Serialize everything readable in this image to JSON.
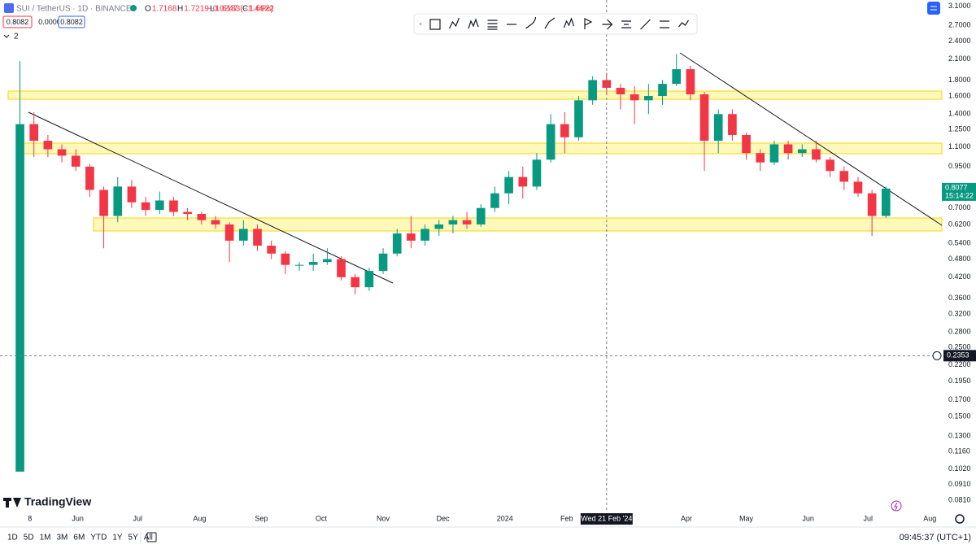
{
  "header": {
    "symbol": "SUI / TetherUS · 1D · BINANCE",
    "ohlc": [
      {
        "label": "O",
        "value": "1.7168"
      },
      {
        "label": "H",
        "value": "1.7219"
      },
      {
        "label": "L",
        "value": "1.6183"
      },
      {
        "label": "C",
        "value": "1.6922"
      }
    ],
    "change": "−0.0247 (−1.44%)",
    "boxes": [
      "0.8082",
      "0.0000",
      "0.8082"
    ],
    "indicators": "2"
  },
  "chart_data": {
    "type": "candlestick",
    "log_scale": true,
    "grid": false,
    "up_color": "#089981",
    "down_color": "#f23645",
    "xlim": [
      "2023-04-23",
      "2024-08-07"
    ],
    "xticks": [
      {
        "value": "2023-05-08",
        "label": "8"
      },
      {
        "value": "2023-06-01",
        "label": "Jun"
      },
      {
        "value": "2023-07-01",
        "label": "Jul"
      },
      {
        "value": "2023-08-01",
        "label": "Aug"
      },
      {
        "value": "2023-09-01",
        "label": "Sep"
      },
      {
        "value": "2023-10-01",
        "label": "Oct"
      },
      {
        "value": "2023-11-01",
        "label": "Nov"
      },
      {
        "value": "2023-12-01",
        "label": "Dec"
      },
      {
        "value": "2024-01-01",
        "label": "2024"
      },
      {
        "value": "2024-02-01",
        "label": "Feb"
      },
      {
        "value": "2024-04-01",
        "label": "Apr"
      },
      {
        "value": "2024-05-01",
        "label": "May"
      },
      {
        "value": "2024-06-01",
        "label": "Jun"
      },
      {
        "value": "2024-07-01",
        "label": "Jul"
      },
      {
        "value": "2024-08-01",
        "label": "Aug"
      }
    ],
    "ylim": [
      0.074,
      3.25
    ],
    "yticks": [
      {
        "value": 3.1,
        "label": "3.1000"
      },
      {
        "value": 2.7,
        "label": "2.7000"
      },
      {
        "value": 2.4,
        "label": "2.4000"
      },
      {
        "value": 2.1,
        "label": "2.1000"
      },
      {
        "value": 1.8,
        "label": "1.8000"
      },
      {
        "value": 1.6,
        "label": "1.6000"
      },
      {
        "value": 1.4,
        "label": "1.4000"
      },
      {
        "value": 1.25,
        "label": "1.2500"
      },
      {
        "value": 1.1,
        "label": "1.1000"
      },
      {
        "value": 0.95,
        "label": "0.9500"
      },
      {
        "value": 0.7,
        "label": "0.7000"
      },
      {
        "value": 0.62,
        "label": "0.6200"
      },
      {
        "value": 0.54,
        "label": "0.5400"
      },
      {
        "value": 0.48,
        "label": "0.4800"
      },
      {
        "value": 0.42,
        "label": "0.4200"
      },
      {
        "value": 0.36,
        "label": "0.3600"
      },
      {
        "value": 0.32,
        "label": "0.3200"
      },
      {
        "value": 0.28,
        "label": "0.2800"
      },
      {
        "value": 0.25,
        "label": "0.2500"
      },
      {
        "value": 0.22,
        "label": "0.2200"
      },
      {
        "value": 0.195,
        "label": "0.1950"
      },
      {
        "value": 0.17,
        "label": "0.1700"
      },
      {
        "value": 0.15,
        "label": "0.1500"
      },
      {
        "value": 0.13,
        "label": "0.1300"
      },
      {
        "value": 0.116,
        "label": "0.1160"
      },
      {
        "value": 0.102,
        "label": "0.1020"
      },
      {
        "value": 0.091,
        "label": "0.0910"
      },
      {
        "value": 0.081,
        "label": "0.0810"
      }
    ],
    "x": [
      "2023-05-03",
      "2023-05-10",
      "2023-05-17",
      "2023-05-24",
      "2023-05-31",
      "2023-06-07",
      "2023-06-14",
      "2023-06-21",
      "2023-06-28",
      "2023-07-05",
      "2023-07-12",
      "2023-07-19",
      "2023-07-26",
      "2023-08-02",
      "2023-08-09",
      "2023-08-16",
      "2023-08-23",
      "2023-08-30",
      "2023-09-06",
      "2023-09-13",
      "2023-09-20",
      "2023-09-27",
      "2023-10-04",
      "2023-10-11",
      "2023-10-18",
      "2023-10-25",
      "2023-11-01",
      "2023-11-08",
      "2023-11-15",
      "2023-11-22",
      "2023-11-29",
      "2023-12-06",
      "2023-12-13",
      "2023-12-20",
      "2023-12-27",
      "2024-01-03",
      "2024-01-10",
      "2024-01-17",
      "2024-01-24",
      "2024-01-31",
      "2024-02-07",
      "2024-02-14",
      "2024-02-21",
      "2024-02-28",
      "2024-03-06",
      "2024-03-13",
      "2024-03-20",
      "2024-03-27",
      "2024-04-03",
      "2024-04-10",
      "2024-04-17",
      "2024-04-24",
      "2024-05-01",
      "2024-05-08",
      "2024-05-15",
      "2024-05-22",
      "2024-05-29",
      "2024-06-05",
      "2024-06-12",
      "2024-06-19",
      "2024-06-26",
      "2024-07-03",
      "2024-07-10"
    ],
    "open": [
      0.1,
      1.3,
      1.15,
      1.08,
      1.03,
      0.95,
      0.8,
      0.66,
      0.82,
      0.73,
      0.69,
      0.74,
      0.68,
      0.67,
      0.64,
      0.62,
      0.55,
      0.6,
      0.53,
      0.5,
      0.46,
      0.46,
      0.47,
      0.48,
      0.42,
      0.39,
      0.44,
      0.5,
      0.58,
      0.55,
      0.6,
      0.62,
      0.64,
      0.62,
      0.7,
      0.78,
      0.88,
      0.82,
      1.0,
      1.3,
      1.18,
      1.55,
      1.8,
      1.7,
      1.62,
      1.55,
      1.6,
      1.75,
      1.95,
      1.62,
      1.15,
      1.4,
      1.2,
      1.05,
      0.98,
      1.12,
      1.05,
      1.08,
      1.0,
      0.92,
      0.85,
      0.78,
      0.66
    ],
    "high": [
      2.07,
      1.42,
      1.2,
      1.12,
      1.08,
      0.97,
      0.82,
      0.88,
      0.86,
      0.76,
      0.79,
      0.76,
      0.7,
      0.68,
      0.66,
      0.63,
      0.64,
      0.62,
      0.55,
      0.51,
      0.47,
      0.5,
      0.52,
      0.49,
      0.43,
      0.45,
      0.52,
      0.6,
      0.66,
      0.62,
      0.64,
      0.66,
      0.68,
      0.72,
      0.82,
      0.92,
      0.95,
      1.05,
      1.4,
      1.42,
      1.6,
      1.85,
      1.9,
      1.75,
      1.72,
      1.75,
      1.8,
      2.18,
      2.0,
      1.65,
      1.45,
      1.45,
      1.22,
      1.08,
      1.15,
      1.15,
      1.12,
      1.15,
      1.02,
      0.95,
      0.88,
      0.8,
      0.82
    ],
    "low": [
      0.1,
      1.02,
      1.02,
      0.98,
      0.92,
      0.76,
      0.52,
      0.63,
      0.7,
      0.66,
      0.67,
      0.66,
      0.64,
      0.62,
      0.6,
      0.47,
      0.53,
      0.51,
      0.48,
      0.43,
      0.44,
      0.44,
      0.46,
      0.41,
      0.37,
      0.38,
      0.43,
      0.49,
      0.52,
      0.53,
      0.57,
      0.58,
      0.6,
      0.61,
      0.68,
      0.72,
      0.75,
      0.8,
      0.98,
      1.05,
      1.15,
      1.5,
      1.62,
      1.45,
      1.3,
      1.4,
      1.5,
      1.72,
      1.55,
      0.92,
      1.05,
      1.15,
      1.0,
      0.92,
      0.96,
      1.0,
      1.02,
      0.98,
      0.88,
      0.8,
      0.76,
      0.57,
      0.65
    ],
    "close": [
      1.3,
      1.15,
      1.08,
      1.03,
      0.95,
      0.8,
      0.66,
      0.82,
      0.73,
      0.69,
      0.74,
      0.68,
      0.67,
      0.64,
      0.62,
      0.55,
      0.6,
      0.53,
      0.5,
      0.46,
      0.46,
      0.47,
      0.48,
      0.42,
      0.39,
      0.44,
      0.5,
      0.58,
      0.55,
      0.6,
      0.62,
      0.64,
      0.62,
      0.7,
      0.78,
      0.88,
      0.82,
      1.0,
      1.3,
      1.18,
      1.55,
      1.8,
      1.7,
      1.62,
      1.55,
      1.6,
      1.75,
      1.95,
      1.62,
      1.15,
      1.4,
      1.2,
      1.05,
      0.98,
      1.12,
      1.05,
      1.08,
      1.0,
      0.92,
      0.85,
      0.78,
      0.66,
      0.8077
    ],
    "price_label": {
      "value": 0.8077,
      "label": "0.8077",
      "countdown": "15:14:22"
    },
    "crosshair": {
      "price": 0.2353,
      "price_label": "0.2353",
      "date": "2024-02-21",
      "date_label": "Wed 21 Feb '24"
    }
  },
  "brand": "TradingView",
  "footer": {
    "timeframes": [
      "1D",
      "5D",
      "1M",
      "3M",
      "6M",
      "YTD",
      "1Y",
      "5Y",
      "All"
    ],
    "clock": "09:45:37 (UTC+1)"
  }
}
